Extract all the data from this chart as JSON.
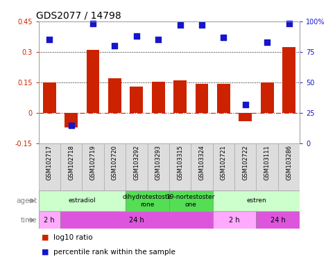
{
  "title": "GDS2077 / 14798",
  "samples": [
    "GSM102717",
    "GSM102718",
    "GSM102719",
    "GSM102720",
    "GSM103292",
    "GSM103293",
    "GSM103315",
    "GSM103324",
    "GSM102721",
    "GSM102722",
    "GSM103111",
    "GSM103286"
  ],
  "log10_ratio": [
    0.15,
    -0.07,
    0.31,
    0.17,
    0.13,
    0.155,
    0.16,
    0.145,
    0.145,
    -0.04,
    0.15,
    0.325
  ],
  "percentile": [
    85,
    15,
    98,
    80,
    88,
    85,
    97,
    97,
    87,
    32,
    83,
    98
  ],
  "ylim_left": [
    -0.15,
    0.45
  ],
  "yticks_left": [
    -0.15,
    0,
    0.15,
    0.3,
    0.45
  ],
  "ytick_labels_left": [
    "-0.15",
    "0",
    "0.15",
    "0.3",
    "0.45"
  ],
  "yticks_right": [
    0,
    25,
    50,
    75,
    100
  ],
  "ytick_labels_right": [
    "0",
    "25",
    "50",
    "75",
    "100%"
  ],
  "hline_dotted": [
    0.15,
    0.3
  ],
  "bar_color": "#cc2200",
  "dot_color": "#1515cc",
  "zero_line_color": "#cc2200",
  "agent_groups": [
    {
      "label": "estradiol",
      "start": 0,
      "end": 4,
      "color": "#ccffcc"
    },
    {
      "label": "dihydrotestoste\nrone",
      "start": 4,
      "end": 6,
      "color": "#55dd55"
    },
    {
      "label": "19-nortestoster\none",
      "start": 6,
      "end": 8,
      "color": "#55dd55"
    },
    {
      "label": "estren",
      "start": 8,
      "end": 12,
      "color": "#ccffcc"
    }
  ],
  "time_groups": [
    {
      "label": "2 h",
      "start": 0,
      "end": 1,
      "color": "#ffaaff"
    },
    {
      "label": "24 h",
      "start": 1,
      "end": 8,
      "color": "#dd55dd"
    },
    {
      "label": "2 h",
      "start": 8,
      "end": 10,
      "color": "#ffaaff"
    },
    {
      "label": "24 h",
      "start": 10,
      "end": 12,
      "color": "#dd55dd"
    }
  ],
  "legend_red_label": "log10 ratio",
  "legend_blue_label": "percentile rank within the sample",
  "bar_width": 0.6,
  "dot_size": 30,
  "sample_label_fontsize": 6,
  "title_fontsize": 10,
  "tick_fontsize": 7,
  "row_label_fontsize": 7.5,
  "legend_fontsize": 7.5
}
